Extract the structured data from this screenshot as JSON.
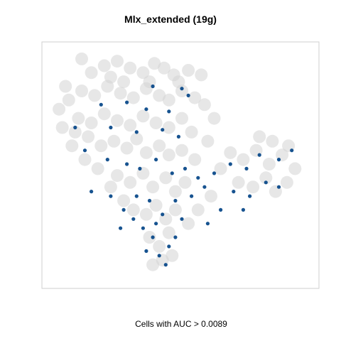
{
  "chart_data": {
    "type": "scatter",
    "title": "Mlx_extended (19g)",
    "xlabel": "Cells with AUC > 0.0089",
    "ylabel": "",
    "grid": false,
    "legend": "none",
    "series": [
      {
        "role": "background",
        "color": "#d3d3d3",
        "points": [
          [
            18,
            96
          ],
          [
            24,
            90
          ],
          [
            32,
            93
          ],
          [
            40,
            95
          ],
          [
            48,
            92
          ],
          [
            56,
            90
          ],
          [
            63,
            94
          ],
          [
            69,
            92
          ],
          [
            75,
            89
          ],
          [
            84,
            91
          ],
          [
            92,
            89
          ],
          [
            10,
            78
          ],
          [
            18,
            82
          ],
          [
            26,
            80
          ],
          [
            34,
            84
          ],
          [
            42,
            81
          ],
          [
            50,
            79
          ],
          [
            58,
            83
          ],
          [
            66,
            80
          ],
          [
            72,
            78
          ],
          [
            80,
            82
          ],
          [
            88,
            79
          ],
          [
            94,
            76
          ],
          [
            16,
            70
          ],
          [
            24,
            68
          ],
          [
            32,
            72
          ],
          [
            40,
            69
          ],
          [
            48,
            67
          ],
          [
            56,
            71
          ],
          [
            64,
            68
          ],
          [
            72,
            66
          ],
          [
            80,
            70
          ],
          [
            86,
            64
          ],
          [
            30,
            58
          ],
          [
            38,
            60
          ],
          [
            46,
            57
          ],
          [
            52,
            61
          ],
          [
            58,
            55
          ],
          [
            66,
            58
          ],
          [
            72,
            54
          ],
          [
            80,
            56
          ],
          [
            88,
            52
          ],
          [
            110,
            55
          ],
          [
            118,
            52
          ],
          [
            126,
            56
          ],
          [
            134,
            50
          ],
          [
            142,
            54
          ],
          [
            115,
            42
          ],
          [
            124,
            40
          ],
          [
            132,
            44
          ],
          [
            138,
            38
          ],
          [
            145,
            42
          ],
          [
            40,
            45
          ],
          [
            48,
            42
          ],
          [
            56,
            46
          ],
          [
            62,
            40
          ],
          [
            70,
            44
          ],
          [
            76,
            38
          ],
          [
            82,
            42
          ],
          [
            50,
            30
          ],
          [
            58,
            28
          ],
          [
            64,
            32
          ],
          [
            70,
            26
          ],
          [
            76,
            30
          ],
          [
            60,
            18
          ],
          [
            66,
            14
          ],
          [
            72,
            20
          ],
          [
            68,
            8
          ],
          [
            62,
            6
          ],
          [
            74,
            10
          ],
          [
            36,
            88
          ],
          [
            44,
            86
          ],
          [
            60,
            86
          ],
          [
            78,
            86
          ],
          [
            14,
            64
          ],
          [
            22,
            62
          ],
          [
            96,
            60
          ],
          [
            100,
            70
          ],
          [
            104,
            48
          ],
          [
            98,
            36
          ],
          [
            90,
            30
          ],
          [
            84,
            24
          ],
          [
            44,
            34
          ],
          [
            36,
            40
          ],
          [
            28,
            48
          ],
          [
            20,
            52
          ],
          [
            12,
            58
          ],
          [
            6,
            66
          ],
          [
            4,
            74
          ],
          [
            8,
            84
          ],
          [
            128,
            62
          ],
          [
            136,
            60
          ],
          [
            146,
            58
          ],
          [
            150,
            48
          ]
        ]
      },
      {
        "role": "highlighted",
        "color": "#0b4a8a",
        "points": [
          [
            62,
            84
          ],
          [
            80,
            83
          ],
          [
            30,
            76
          ],
          [
            46,
            77
          ],
          [
            58,
            74
          ],
          [
            72,
            73
          ],
          [
            84,
            80
          ],
          [
            14,
            66
          ],
          [
            36,
            66
          ],
          [
            52,
            64
          ],
          [
            68,
            65
          ],
          [
            78,
            62
          ],
          [
            20,
            56
          ],
          [
            34,
            52
          ],
          [
            46,
            50
          ],
          [
            54,
            48
          ],
          [
            64,
            52
          ],
          [
            74,
            46
          ],
          [
            82,
            48
          ],
          [
            90,
            44
          ],
          [
            100,
            46
          ],
          [
            110,
            50
          ],
          [
            120,
            48
          ],
          [
            128,
            54
          ],
          [
            140,
            52
          ],
          [
            148,
            56
          ],
          [
            24,
            38
          ],
          [
            36,
            36
          ],
          [
            44,
            30
          ],
          [
            52,
            36
          ],
          [
            60,
            34
          ],
          [
            68,
            28
          ],
          [
            76,
            34
          ],
          [
            86,
            36
          ],
          [
            94,
            40
          ],
          [
            112,
            38
          ],
          [
            122,
            36
          ],
          [
            132,
            42
          ],
          [
            140,
            40
          ],
          [
            56,
            22
          ],
          [
            62,
            18
          ],
          [
            66,
            10
          ],
          [
            72,
            14
          ],
          [
            70,
            6
          ],
          [
            76,
            18
          ],
          [
            58,
            12
          ],
          [
            64,
            24
          ],
          [
            50,
            26
          ],
          [
            42,
            22
          ],
          [
            80,
            26
          ],
          [
            104,
            30
          ],
          [
            118,
            30
          ],
          [
            96,
            24
          ]
        ]
      }
    ]
  }
}
